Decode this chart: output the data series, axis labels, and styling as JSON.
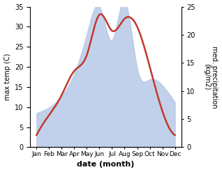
{
  "months": [
    "Jan",
    "Feb",
    "Mar",
    "Apr",
    "May",
    "Jun",
    "Jul",
    "Aug",
    "Sep",
    "Oct",
    "Nov",
    "Dec"
  ],
  "month_x": [
    1,
    2,
    3,
    4,
    5,
    6,
    7,
    8,
    9,
    10,
    11,
    12
  ],
  "temperature": [
    3.0,
    8.0,
    13.0,
    19.0,
    23.0,
    33.0,
    29.0,
    32.0,
    30.0,
    20.0,
    9.0,
    3.0
  ],
  "precipitation": [
    6,
    7,
    9,
    13,
    20,
    25,
    19,
    26,
    14,
    12,
    11,
    8
  ],
  "temp_color": "#c0392b",
  "precip_color": "#b8c9e8",
  "precip_alpha": 0.85,
  "temp_ylim": [
    0,
    35
  ],
  "precip_ylim": [
    0,
    25
  ],
  "temp_yticks": [
    0,
    5,
    10,
    15,
    20,
    25,
    30,
    35
  ],
  "precip_yticks": [
    0,
    5,
    10,
    15,
    20,
    25
  ],
  "xlabel": "date (month)",
  "ylabel_left": "max temp (C)",
  "ylabel_right": "med. precipitation\n(kg/m2)",
  "bg_color": "#ffffff",
  "fig_width": 3.18,
  "fig_height": 2.47,
  "dpi": 100,
  "xlim_left": 0.5,
  "xlim_right": 12.5
}
